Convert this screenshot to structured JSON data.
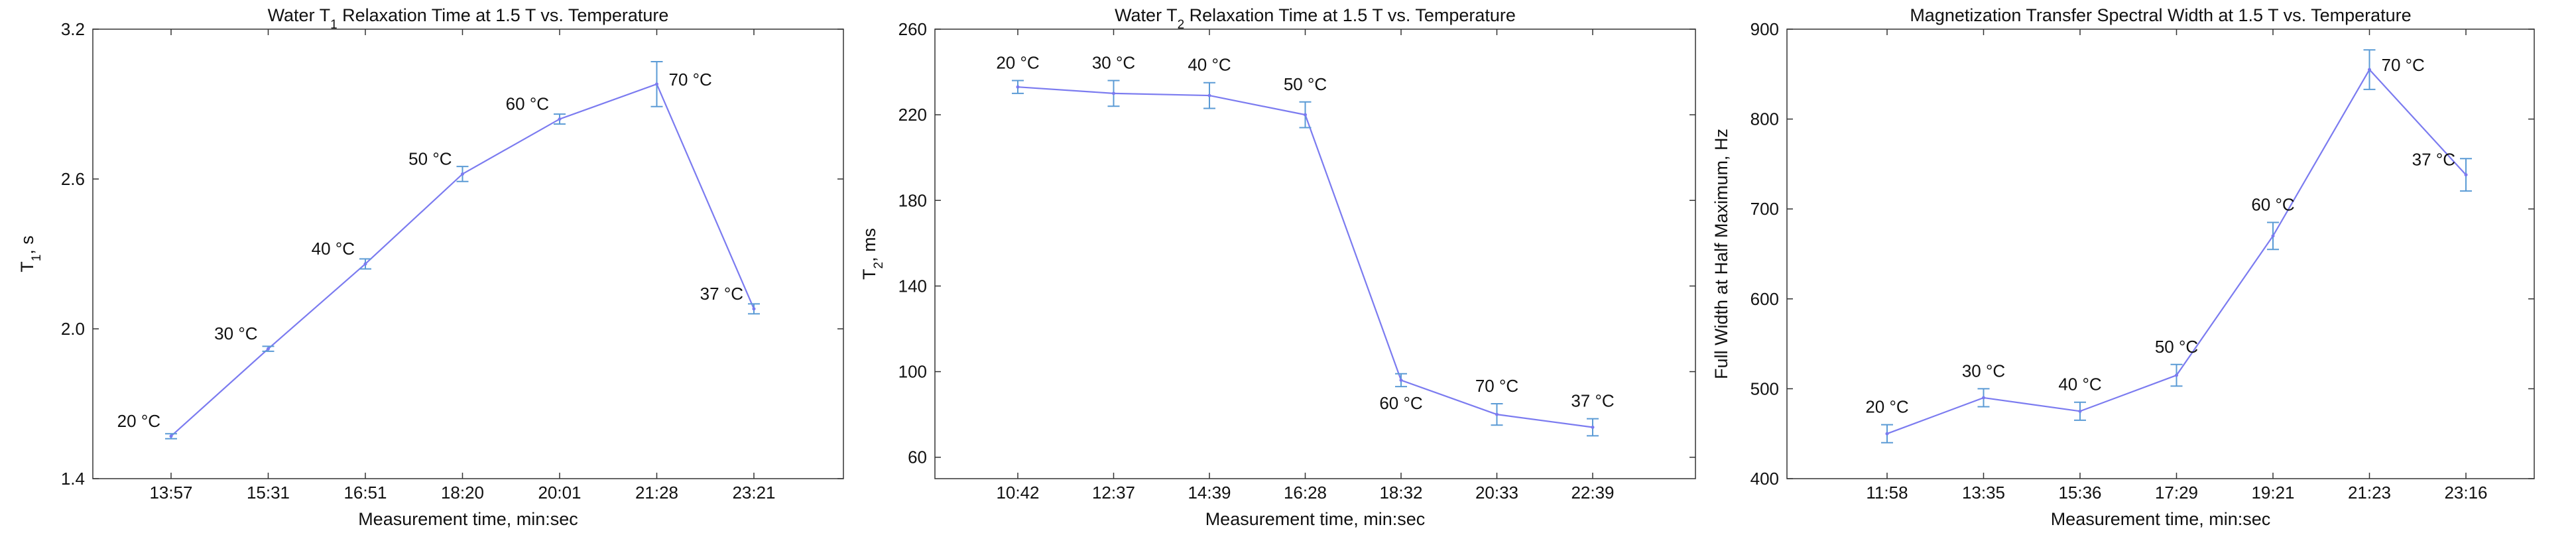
{
  "chart_data": [
    {
      "type": "line",
      "title": "Water T1 Relaxation Time at 1.5 T vs. Temperature",
      "title_parts": [
        "Water T",
        "1",
        " Relaxation Time at 1.5 T vs. Temperature"
      ],
      "xlabel": "Measurement time, min:sec",
      "ylabel": "T1, s",
      "ylabel_parts": [
        "T",
        "1",
        ", s"
      ],
      "categories": [
        "13:57",
        "15:31",
        "16:51",
        "18:20",
        "20:01",
        "21:28",
        "23:21"
      ],
      "yticks": [
        "1.4",
        "2.0",
        "2.6",
        "3.2"
      ],
      "ylim": [
        1.4,
        3.2
      ],
      "series": [
        {
          "name": "T1",
          "values": [
            1.57,
            1.92,
            2.26,
            2.62,
            2.84,
            2.98,
            2.08
          ],
          "errors": [
            0.01,
            0.01,
            0.02,
            0.03,
            0.02,
            0.09,
            0.02
          ],
          "point_labels": [
            "20 °C",
            "30 °C",
            "40 °C",
            "50 °C",
            "60 °C",
            "70 °C",
            "37 °C"
          ],
          "label_sides": [
            "left",
            "left",
            "left",
            "left",
            "left",
            "right",
            "left"
          ]
        }
      ],
      "color": "#7b7bf0",
      "error_color": "#5b9bd5"
    },
    {
      "type": "line",
      "title": "Water T2 Relaxation Time at 1.5 T vs. Temperature",
      "title_parts": [
        "Water T",
        "2",
        " Relaxation Time at 1.5 T vs. Temperature"
      ],
      "xlabel": "Measurement time, min:sec",
      "ylabel": "T2, ms",
      "ylabel_parts": [
        "T",
        "2",
        ", ms"
      ],
      "categories": [
        "10:42",
        "12:37",
        "14:39",
        "16:28",
        "18:32",
        "20:33",
        "22:39"
      ],
      "yticks": [
        "60",
        "100",
        "140",
        "180",
        "220",
        "260"
      ],
      "ylim": [
        50,
        260
      ],
      "series": [
        {
          "name": "T2",
          "values": [
            233,
            230,
            229,
            220,
            96,
            80,
            74
          ],
          "errors": [
            3,
            6,
            6,
            6,
            3,
            5,
            4
          ],
          "point_labels": [
            "20 °C",
            "30 °C",
            "40 °C",
            "50 °C",
            "60 °C",
            "70 °C",
            "37 °C"
          ],
          "label_sides": [
            "above",
            "above",
            "above",
            "above",
            "below",
            "above",
            "above"
          ]
        }
      ],
      "color": "#7b7bf0",
      "error_color": "#5b9bd5"
    },
    {
      "type": "line",
      "title": "Magnetization Transfer Spectral Width at 1.5 T vs. Temperature",
      "title_parts": [
        "Magnetization Transfer Spectral Width at 1.5 T vs. Temperature"
      ],
      "xlabel": "Measurement time, min:sec",
      "ylabel": "Full Width at Half Maximum, Hz",
      "ylabel_parts": [
        "Full Width at Half Maximum, Hz"
      ],
      "categories": [
        "11:58",
        "13:35",
        "15:36",
        "17:29",
        "19:21",
        "21:23",
        "23:16"
      ],
      "yticks": [
        "400",
        "500",
        "600",
        "700",
        "800",
        "900"
      ],
      "ylim": [
        400,
        900
      ],
      "series": [
        {
          "name": "FWHM",
          "values": [
            450,
            490,
            475,
            515,
            670,
            855,
            738
          ],
          "errors": [
            10,
            10,
            10,
            12,
            15,
            22,
            18
          ],
          "point_labels": [
            "20 °C",
            "30 °C",
            "40 °C",
            "50 °C",
            "60 °C",
            "70 °C",
            "37 °C"
          ],
          "label_sides": [
            "above",
            "above",
            "above",
            "above",
            "above",
            "right",
            "left"
          ]
        }
      ],
      "color": "#7b7bf0",
      "error_color": "#5b9bd5"
    }
  ]
}
